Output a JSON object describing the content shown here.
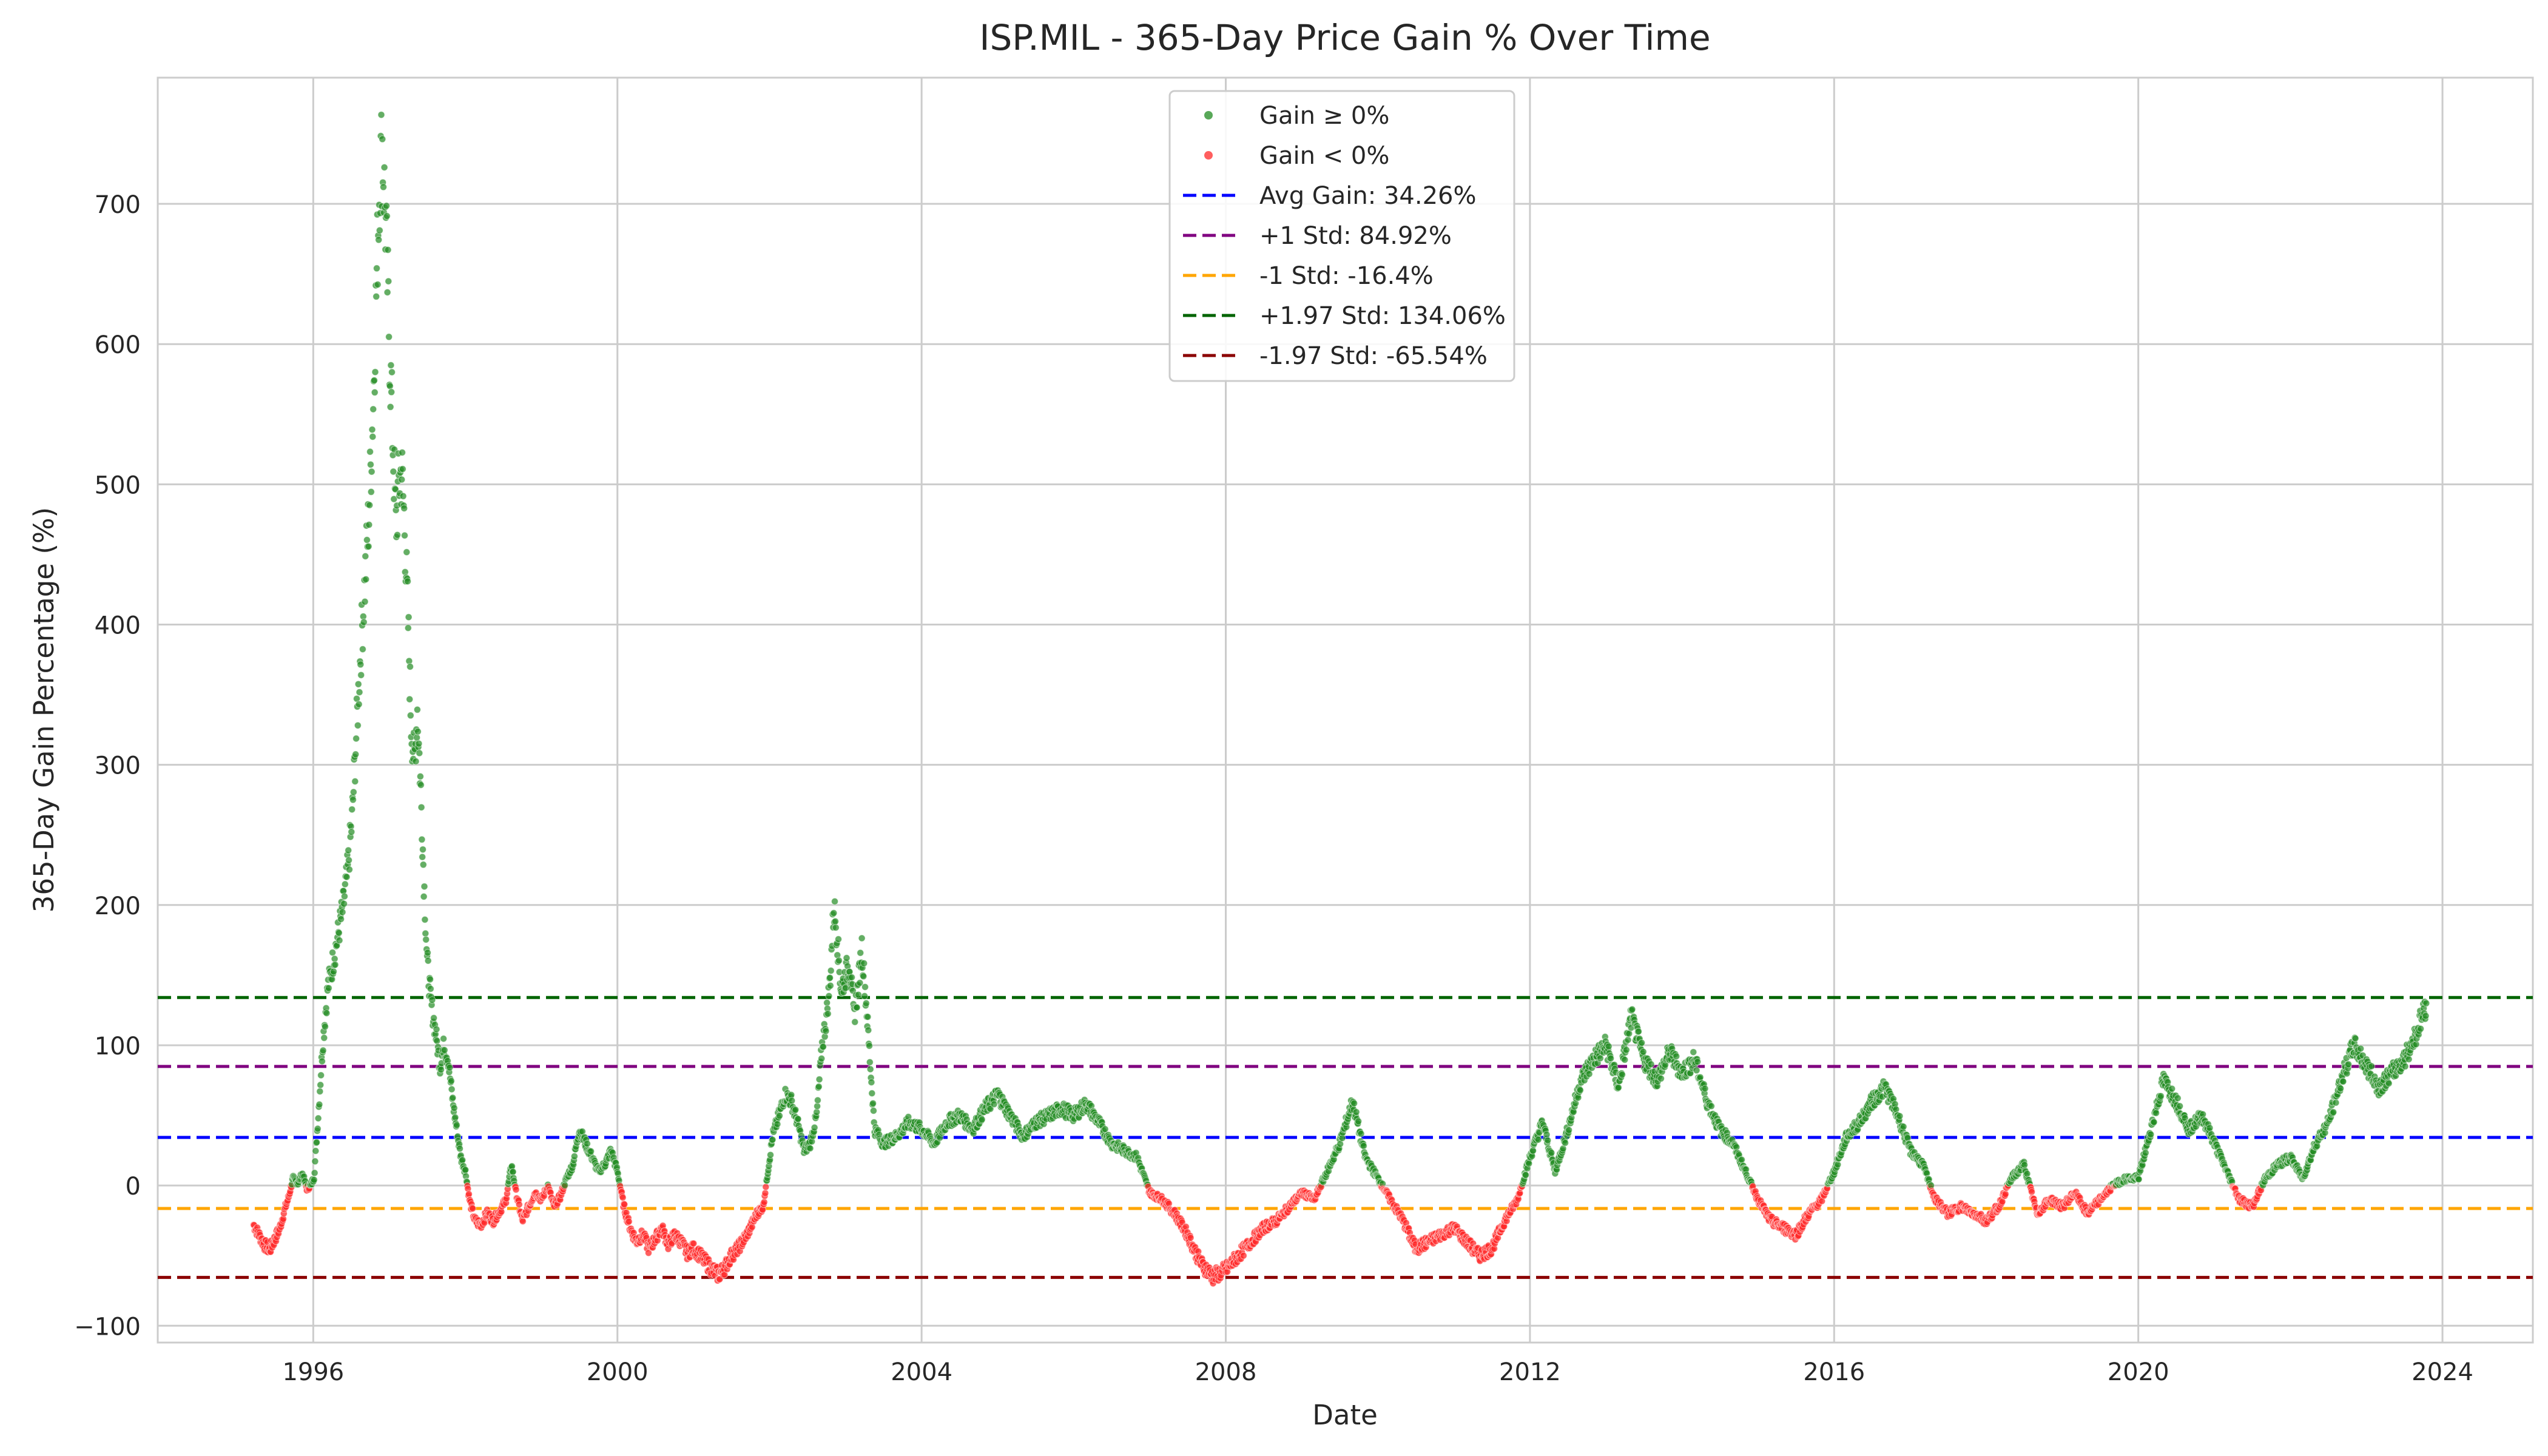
{
  "chart_data": {
    "type": "scatter",
    "title": "ISP.MIL - 365-Day Price Gain % Over Time",
    "xlabel": "Date",
    "ylabel": "365-Day Gain Percentage (%)",
    "xlim": [
      "1993-12-15",
      "2025-03-10"
    ],
    "ylim": [
      -112,
      790
    ],
    "x_ticks": [
      "1996",
      "2000",
      "2004",
      "2008",
      "2012",
      "2016",
      "2020",
      "2024"
    ],
    "y_ticks": [
      -100,
      0,
      100,
      200,
      300,
      400,
      500,
      600,
      700
    ],
    "y_tick_labels": [
      "−100",
      "0",
      "100",
      "200",
      "300",
      "400",
      "500",
      "600",
      "700"
    ],
    "grid": true,
    "legend_position": "upper center",
    "positive_color": "#228b22",
    "negative_color": "#ff2a2a",
    "series": [
      {
        "name": "Gain ≥ 0%",
        "color": "#228b22"
      },
      {
        "name": "Gain < 0%",
        "color": "#ff2a2a"
      }
    ],
    "reference_lines": [
      {
        "label": "Avg Gain: 34.26%",
        "value": 34.26,
        "color": "#0000ff"
      },
      {
        "label": "+1 Std: 84.92%",
        "value": 84.92,
        "color": "#800080"
      },
      {
        "label": "-1 Std: -16.4%",
        "value": -16.4,
        "color": "#ffa500"
      },
      {
        "label": "+1.97 Std: 134.06%",
        "value": 134.06,
        "color": "#006400"
      },
      {
        "label": "-1.97 Std: -65.54%",
        "value": -65.54,
        "color": "#8b0000"
      }
    ],
    "points": [
      [
        "1995-03-20",
        -28
      ],
      [
        "1995-04-15",
        -35
      ],
      [
        "1995-05-10",
        -42
      ],
      [
        "1995-06-05",
        -46
      ],
      [
        "1995-07-01",
        -38
      ],
      [
        "1995-07-25",
        -30
      ],
      [
        "1995-08-15",
        -18
      ],
      [
        "1995-09-05",
        -8
      ],
      [
        "1995-09-25",
        5
      ],
      [
        "1995-10-20",
        2
      ],
      [
        "1995-11-10",
        8
      ],
      [
        "1995-12-01",
        -2
      ],
      [
        "1995-12-20",
        0
      ],
      [
        "1996-01-05",
        6
      ],
      [
        "1996-01-25",
        50
      ],
      [
        "1996-02-15",
        100
      ],
      [
        "1996-03-10",
        140
      ],
      [
        "1996-04-05",
        160
      ],
      [
        "1996-05-01",
        180
      ],
      [
        "1996-05-25",
        200
      ],
      [
        "1996-06-15",
        225
      ],
      [
        "1996-07-05",
        260
      ],
      [
        "1996-07-25",
        320
      ],
      [
        "1996-08-15",
        380
      ],
      [
        "1996-09-05",
        430
      ],
      [
        "1996-09-25",
        480
      ],
      [
        "1996-10-15",
        560
      ],
      [
        "1996-11-01",
        650
      ],
      [
        "1996-11-15",
        720
      ],
      [
        "1996-11-28",
        743
      ],
      [
        "1996-12-15",
        680
      ],
      [
        "1997-01-01",
        600
      ],
      [
        "1997-01-15",
        540
      ],
      [
        "1997-02-01",
        470
      ],
      [
        "1997-02-15",
        500
      ],
      [
        "1997-03-01",
        510
      ],
      [
        "1997-03-15",
        470
      ],
      [
        "1997-04-01",
        400
      ],
      [
        "1997-04-15",
        330
      ],
      [
        "1997-05-01",
        300
      ],
      [
        "1997-05-15",
        340
      ],
      [
        "1997-06-01",
        280
      ],
      [
        "1997-06-15",
        220
      ],
      [
        "1997-07-01",
        160
      ],
      [
        "1997-07-20",
        130
      ],
      [
        "1997-08-10",
        110
      ],
      [
        "1997-09-01",
        85
      ],
      [
        "1997-09-20",
        100
      ],
      [
        "1997-10-10",
        90
      ],
      [
        "1997-11-01",
        60
      ],
      [
        "1997-11-20",
        40
      ],
      [
        "1997-12-10",
        20
      ],
      [
        "1998-01-01",
        10
      ],
      [
        "1998-01-20",
        -10
      ],
      [
        "1998-02-15",
        -25
      ],
      [
        "1998-03-15",
        -28
      ],
      [
        "1998-04-15",
        -20
      ],
      [
        "1998-05-15",
        -25
      ],
      [
        "1998-06-15",
        -18
      ],
      [
        "1998-07-15",
        -10
      ],
      [
        "1998-08-10",
        15
      ],
      [
        "1998-09-01",
        -5
      ],
      [
        "1998-10-01",
        -25
      ],
      [
        "1998-11-01",
        -15
      ],
      [
        "1998-12-01",
        -5
      ],
      [
        "1999-01-01",
        -10
      ],
      [
        "1999-02-01",
        0
      ],
      [
        "1999-03-01",
        -15
      ],
      [
        "1999-04-01",
        -8
      ],
      [
        "1999-05-01",
        5
      ],
      [
        "1999-06-01",
        15
      ],
      [
        "1999-07-01",
        40
      ],
      [
        "1999-08-01",
        30
      ],
      [
        "1999-09-01",
        20
      ],
      [
        "1999-10-01",
        10
      ],
      [
        "1999-11-01",
        15
      ],
      [
        "1999-12-01",
        25
      ],
      [
        "2000-01-01",
        10
      ],
      [
        "2000-02-01",
        -15
      ],
      [
        "2000-03-01",
        -30
      ],
      [
        "2000-04-01",
        -40
      ],
      [
        "2000-05-01",
        -35
      ],
      [
        "2000-06-01",
        -45
      ],
      [
        "2000-07-01",
        -38
      ],
      [
        "2000-08-01",
        -30
      ],
      [
        "2000-09-01",
        -42
      ],
      [
        "2000-10-01",
        -35
      ],
      [
        "2000-11-01",
        -40
      ],
      [
        "2000-12-01",
        -48
      ],
      [
        "2001-01-01",
        -45
      ],
      [
        "2001-02-01",
        -50
      ],
      [
        "2001-03-01",
        -55
      ],
      [
        "2001-04-01",
        -60
      ],
      [
        "2001-05-01",
        -64
      ],
      [
        "2001-06-01",
        -58
      ],
      [
        "2001-07-01",
        -50
      ],
      [
        "2001-08-01",
        -45
      ],
      [
        "2001-09-01",
        -38
      ],
      [
        "2001-10-01",
        -30
      ],
      [
        "2001-11-01",
        -20
      ],
      [
        "2001-12-01",
        -15
      ],
      [
        "2002-01-15",
        35
      ],
      [
        "2002-02-15",
        50
      ],
      [
        "2002-03-15",
        65
      ],
      [
        "2002-04-15",
        60
      ],
      [
        "2002-05-15",
        45
      ],
      [
        "2002-06-15",
        25
      ],
      [
        "2002-07-15",
        30
      ],
      [
        "2002-08-15",
        50
      ],
      [
        "2002-09-10",
        100
      ],
      [
        "2002-10-01",
        120
      ],
      [
        "2002-10-20",
        150
      ],
      [
        "2002-11-05",
        200
      ],
      [
        "2002-11-20",
        180
      ],
      [
        "2002-12-10",
        140
      ],
      [
        "2003-01-01",
        150
      ],
      [
        "2003-01-20",
        160
      ],
      [
        "2003-02-10",
        120
      ],
      [
        "2003-03-01",
        140
      ],
      [
        "2003-03-20",
        170
      ],
      [
        "2003-04-10",
        130
      ],
      [
        "2003-05-20",
        40
      ],
      [
        "2003-07-01",
        30
      ],
      [
        "2003-09-01",
        35
      ],
      [
        "2003-11-01",
        45
      ],
      [
        "2004-01-01",
        40
      ],
      [
        "2004-03-01",
        30
      ],
      [
        "2004-05-01",
        45
      ],
      [
        "2004-07-01",
        50
      ],
      [
        "2004-09-01",
        40
      ],
      [
        "2004-11-01",
        55
      ],
      [
        "2005-01-01",
        65
      ],
      [
        "2005-03-01",
        50
      ],
      [
        "2005-05-01",
        35
      ],
      [
        "2005-07-01",
        45
      ],
      [
        "2005-09-01",
        50
      ],
      [
        "2005-11-01",
        55
      ],
      [
        "2006-01-01",
        50
      ],
      [
        "2006-03-01",
        58
      ],
      [
        "2006-05-01",
        45
      ],
      [
        "2006-07-01",
        30
      ],
      [
        "2006-09-01",
        25
      ],
      [
        "2006-11-01",
        20
      ],
      [
        "2007-01-01",
        -5
      ],
      [
        "2007-03-01",
        -10
      ],
      [
        "2007-05-01",
        -20
      ],
      [
        "2007-07-01",
        -35
      ],
      [
        "2007-09-01",
        -55
      ],
      [
        "2007-11-01",
        -65
      ],
      [
        "2008-01-01",
        -60
      ],
      [
        "2008-03-01",
        -50
      ],
      [
        "2008-05-01",
        -40
      ],
      [
        "2008-07-01",
        -30
      ],
      [
        "2008-09-01",
        -25
      ],
      [
        "2008-11-01",
        -15
      ],
      [
        "2009-01-01",
        -5
      ],
      [
        "2009-03-01",
        -10
      ],
      [
        "2009-05-01",
        10
      ],
      [
        "2009-07-01",
        30
      ],
      [
        "2009-09-01",
        60
      ],
      [
        "2009-11-01",
        20
      ],
      [
        "2010-01-01",
        5
      ],
      [
        "2010-03-01",
        -10
      ],
      [
        "2010-05-01",
        -25
      ],
      [
        "2010-07-01",
        -45
      ],
      [
        "2010-09-01",
        -40
      ],
      [
        "2010-11-01",
        -35
      ],
      [
        "2011-01-01",
        -30
      ],
      [
        "2011-03-01",
        -40
      ],
      [
        "2011-05-01",
        -50
      ],
      [
        "2011-07-01",
        -45
      ],
      [
        "2011-09-01",
        -25
      ],
      [
        "2011-11-01",
        -10
      ],
      [
        "2012-01-01",
        20
      ],
      [
        "2012-03-01",
        45
      ],
      [
        "2012-05-01",
        10
      ],
      [
        "2012-07-01",
        40
      ],
      [
        "2012-09-01",
        75
      ],
      [
        "2012-11-01",
        90
      ],
      [
        "2013-01-01",
        100
      ],
      [
        "2013-03-01",
        70
      ],
      [
        "2013-05-01",
        120
      ],
      [
        "2013-07-01",
        90
      ],
      [
        "2013-09-01",
        75
      ],
      [
        "2013-11-01",
        95
      ],
      [
        "2014-01-01",
        80
      ],
      [
        "2014-03-01",
        90
      ],
      [
        "2014-05-01",
        60
      ],
      [
        "2014-07-01",
        40
      ],
      [
        "2014-09-01",
        30
      ],
      [
        "2014-11-01",
        10
      ],
      [
        "2015-01-01",
        -10
      ],
      [
        "2015-03-01",
        -25
      ],
      [
        "2015-05-01",
        -30
      ],
      [
        "2015-07-01",
        -35
      ],
      [
        "2015-09-01",
        -20
      ],
      [
        "2015-11-01",
        -10
      ],
      [
        "2016-01-01",
        10
      ],
      [
        "2016-03-01",
        35
      ],
      [
        "2016-05-01",
        45
      ],
      [
        "2016-07-01",
        60
      ],
      [
        "2016-09-01",
        70
      ],
      [
        "2016-11-01",
        50
      ],
      [
        "2017-01-01",
        25
      ],
      [
        "2017-03-01",
        15
      ],
      [
        "2017-05-01",
        -10
      ],
      [
        "2017-07-01",
        -20
      ],
      [
        "2017-09-01",
        -15
      ],
      [
        "2017-11-01",
        -20
      ],
      [
        "2018-01-01",
        -25
      ],
      [
        "2018-03-01",
        -15
      ],
      [
        "2018-05-01",
        5
      ],
      [
        "2018-07-01",
        15
      ],
      [
        "2018-09-01",
        -20
      ],
      [
        "2018-11-01",
        -10
      ],
      [
        "2019-01-01",
        -15
      ],
      [
        "2019-03-01",
        -5
      ],
      [
        "2019-05-01",
        -20
      ],
      [
        "2019-07-01",
        -10
      ],
      [
        "2019-09-01",
        0
      ],
      [
        "2019-11-01",
        5
      ],
      [
        "2020-01-01",
        5
      ],
      [
        "2020-03-01",
        40
      ],
      [
        "2020-05-01",
        75
      ],
      [
        "2020-07-01",
        60
      ],
      [
        "2020-09-01",
        40
      ],
      [
        "2020-11-01",
        50
      ],
      [
        "2021-01-01",
        30
      ],
      [
        "2021-03-01",
        10
      ],
      [
        "2021-05-01",
        -10
      ],
      [
        "2021-07-01",
        -15
      ],
      [
        "2021-09-01",
        5
      ],
      [
        "2021-11-01",
        15
      ],
      [
        "2022-01-01",
        20
      ],
      [
        "2022-03-01",
        5
      ],
      [
        "2022-05-01",
        30
      ],
      [
        "2022-07-01",
        45
      ],
      [
        "2022-09-01",
        75
      ],
      [
        "2022-11-01",
        100
      ],
      [
        "2023-01-01",
        85
      ],
      [
        "2023-03-01",
        70
      ],
      [
        "2023-05-01",
        80
      ],
      [
        "2023-07-01",
        90
      ],
      [
        "2023-09-01",
        110
      ],
      [
        "2023-10-15",
        130
      ]
    ]
  }
}
